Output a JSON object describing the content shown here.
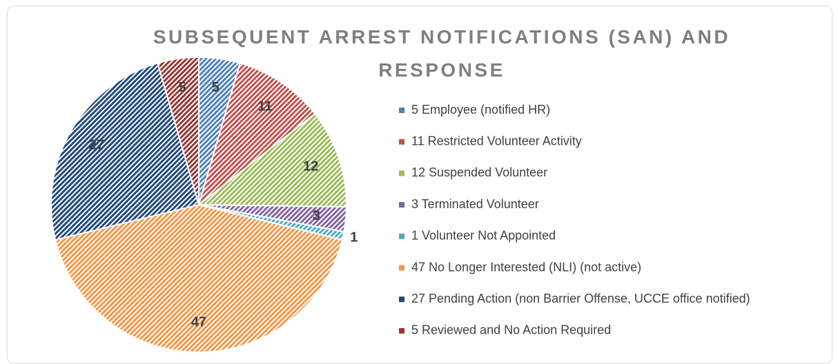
{
  "chart_data": {
    "type": "pie",
    "title": "SUBSEQUENT ARREST NOTIFICATIONS (SAN) AND RESPONSE",
    "categories": [
      "5 Employee (notified HR)",
      "11 Restricted Volunteer Activity",
      "12 Suspended Volunteer",
      "3 Terminated Volunteer",
      "1 Volunteer Not Appointed",
      "47 No Longer Interested (NLI) (not active)",
      "27 Pending Action (non Barrier Offense, UCCE office notified)",
      "5 Reviewed and No Action Required"
    ],
    "values": [
      5,
      11,
      12,
      3,
      1,
      47,
      27,
      5
    ],
    "colors": [
      "#4f81bd",
      "#c0504d",
      "#9bbb59",
      "#8064a2",
      "#4bacc6",
      "#f79646",
      "#1f497d",
      "#953735"
    ],
    "legend": "right"
  }
}
